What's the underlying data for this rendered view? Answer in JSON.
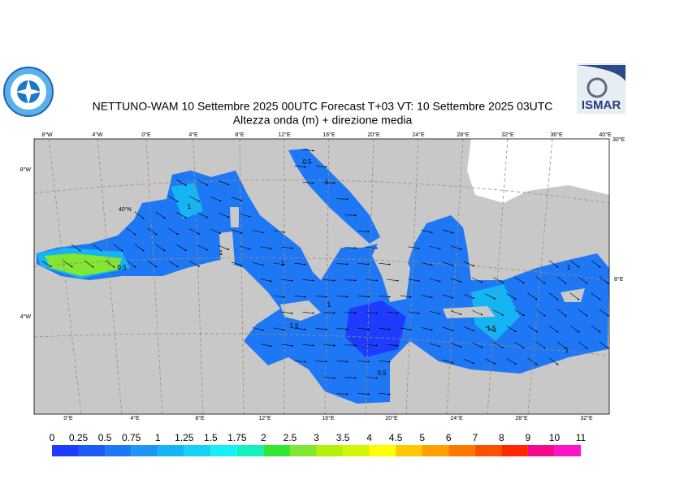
{
  "header": {
    "title": "NETTUNO-WAM  10 Settembre 2025 00UTC Forecast T+03 VT: 10 Settembre 2025 03UTC",
    "subtitle": "Altezza onda (m) + direzione media"
  },
  "logo": {
    "right": "ISMAR"
  },
  "map": {
    "top_labels": [
      "8°W",
      "4°W",
      "0°E",
      "4°E",
      "8°E",
      "12°E",
      "16°E",
      "20°E",
      "24°E",
      "28°E",
      "32°E",
      "36°E",
      "40°E"
    ],
    "bottom_labels": [
      "0°E",
      "4°E",
      "8°E",
      "12°E",
      "16°E",
      "20°E",
      "24°E",
      "28°E",
      "32°E"
    ],
    "left_labels": [
      "8°W",
      "4°W"
    ],
    "right_labels": [
      "30°E",
      "8°E"
    ],
    "inner_labels": [
      "40°N"
    ],
    "contour_labels": [
      "0.5",
      "1",
      "1",
      "1",
      "1",
      "1",
      "1.5",
      "1.5",
      "1",
      "0.5",
      "1",
      "0.5"
    ]
  },
  "colorbar": {
    "levels": [
      0,
      0.25,
      0.5,
      0.75,
      1,
      1.25,
      1.5,
      1.75,
      2,
      2.5,
      3,
      3.5,
      4,
      4.5,
      5,
      6,
      7,
      8,
      9,
      10,
      11
    ],
    "colors": [
      "#1e3cff",
      "#1e5af5",
      "#1e78f5",
      "#1e96f5",
      "#14b4f5",
      "#14d2f5",
      "#14f0f5",
      "#14f0be",
      "#32e632",
      "#82e632",
      "#b4f00a",
      "#d2f50a",
      "#ffff00",
      "#ffc800",
      "#ffa000",
      "#ff7800",
      "#ff5000",
      "#ff2800",
      "#f50a8c",
      "#ff14c8"
    ]
  }
}
